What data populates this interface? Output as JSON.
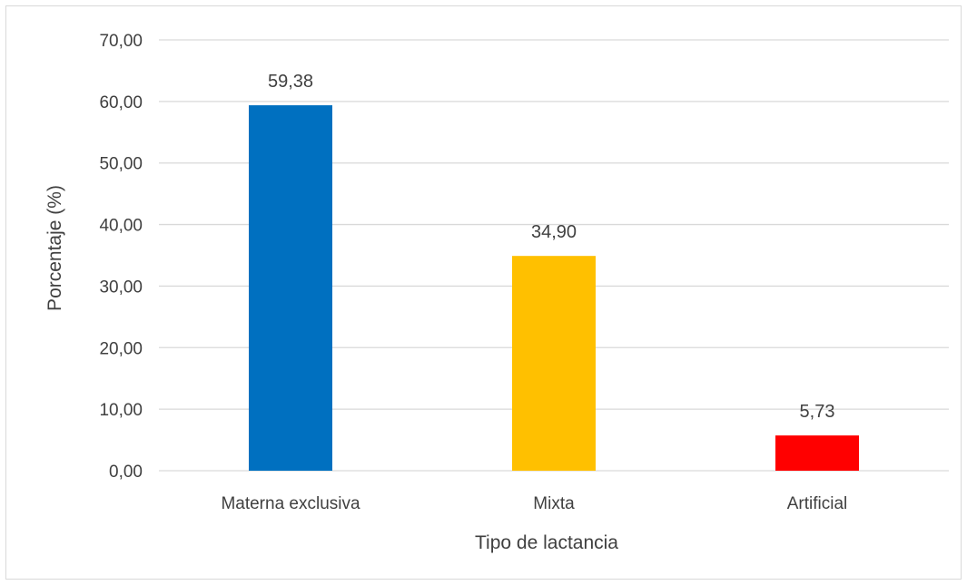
{
  "chart_data": {
    "type": "bar",
    "title": "",
    "xlabel": "Tipo de lactancia",
    "ylabel": "Porcentaje (%)",
    "categories": [
      "Materna exclusiva",
      "Mixta",
      "Artificial"
    ],
    "values": [
      59.38,
      34.9,
      5.73
    ],
    "data_labels": [
      "59,38",
      "34,90",
      "5,73"
    ],
    "bar_colors": [
      "#0070C0",
      "#FFC000",
      "#FF0000"
    ],
    "ylim": [
      0,
      70
    ],
    "yticks": [
      0,
      10,
      20,
      30,
      40,
      50,
      60,
      70
    ],
    "ytick_labels": [
      "0,00",
      "10,00",
      "20,00",
      "30,00",
      "40,00",
      "50,00",
      "60,00",
      "70,00"
    ],
    "grid": true,
    "legend": "none"
  },
  "colors": {
    "gridline": "#d9d9d9",
    "axis_text": "#404040"
  }
}
